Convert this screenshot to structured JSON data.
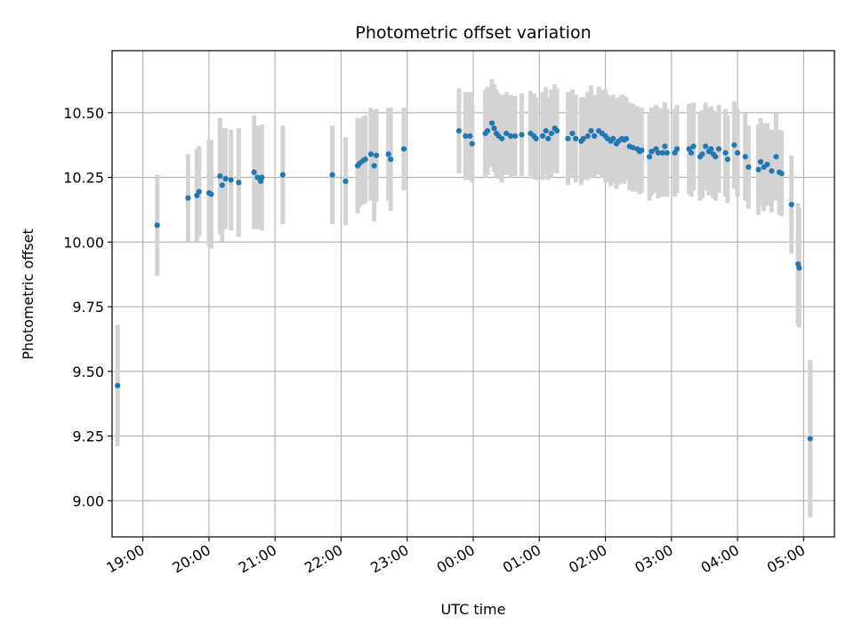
{
  "chart_data": {
    "type": "scatter",
    "title": "Photometric offset variation",
    "xlabel": "UTC time",
    "ylabel": "Photometric offset",
    "x_unit": "UTC time (HH:MM), points after 23:59 fall on the next day",
    "xlim": [
      "18:32",
      "24:00+05:28"
    ],
    "ylim": [
      8.86,
      10.74
    ],
    "grid": true,
    "x_tick_labels": [
      "19:00",
      "20:00",
      "21:00",
      "22:00",
      "23:00",
      "00:00",
      "01:00",
      "02:00",
      "03:00",
      "04:00",
      "05:00"
    ],
    "y_tick_labels": [
      "9.00",
      "9.25",
      "9.50",
      "9.75",
      "10.00",
      "10.25",
      "10.50"
    ],
    "y_ticks": [
      9.0,
      9.25,
      9.5,
      9.75,
      10.0,
      10.25,
      10.5
    ],
    "colors": {
      "points": "#1f77b4",
      "error_bars": "#d3d3d3",
      "grid": "#b0b0b0"
    },
    "series": [
      {
        "points": [
          [
            "18:37",
            9.445,
            0.235
          ],
          [
            "19:13",
            10.065,
            0.195
          ],
          [
            "19:41",
            10.17,
            0.17
          ],
          [
            "19:49",
            10.18,
            0.18
          ],
          [
            "19:51",
            10.195,
            0.175
          ],
          [
            "20:00",
            10.19,
            0.205
          ],
          [
            "20:02",
            10.185,
            0.21
          ],
          [
            "20:10",
            10.255,
            0.225
          ],
          [
            "20:12",
            10.22,
            0.22
          ],
          [
            "20:15",
            10.245,
            0.195
          ],
          [
            "20:20",
            10.24,
            0.195
          ],
          [
            "20:27",
            10.23,
            0.21
          ],
          [
            "20:41",
            10.27,
            0.22
          ],
          [
            "20:44",
            10.25,
            0.2
          ],
          [
            "20:47",
            10.235,
            0.185
          ],
          [
            "20:48",
            10.25,
            0.205
          ],
          [
            "21:07",
            10.26,
            0.19
          ],
          [
            "21:52",
            10.26,
            0.19
          ],
          [
            "22:04",
            10.235,
            0.17
          ],
          [
            "22:15",
            10.295,
            0.185
          ],
          [
            "22:17",
            10.305,
            0.17
          ],
          [
            "22:20",
            10.315,
            0.17
          ],
          [
            "22:22",
            10.32,
            0.17
          ],
          [
            "22:27",
            10.34,
            0.18
          ],
          [
            "22:30",
            10.295,
            0.215
          ],
          [
            "22:32",
            10.335,
            0.18
          ],
          [
            "22:43",
            10.34,
            0.18
          ],
          [
            "22:45",
            10.32,
            0.2
          ],
          [
            "22:57",
            10.36,
            0.16
          ],
          [
            "23:47",
            10.43,
            0.165
          ],
          [
            "23:53",
            10.41,
            0.17
          ],
          [
            "23:57",
            10.41,
            0.17
          ],
          [
            "23:59",
            10.38,
            0.15
          ],
          [
            "00:11",
            10.42,
            0.17
          ],
          [
            "00:13",
            10.43,
            0.17
          ],
          [
            "00:17",
            10.46,
            0.17
          ],
          [
            "00:19",
            10.44,
            0.17
          ],
          [
            "00:21",
            10.42,
            0.17
          ],
          [
            "00:23",
            10.41,
            0.165
          ],
          [
            "00:26",
            10.4,
            0.17
          ],
          [
            "00:30",
            10.42,
            0.16
          ],
          [
            "00:34",
            10.41,
            0.16
          ],
          [
            "00:38",
            10.41,
            0.155
          ],
          [
            "00:44",
            10.415,
            0.16
          ],
          [
            "00:52",
            10.42,
            0.165
          ],
          [
            "00:55",
            10.41,
            0.165
          ],
          [
            "00:57",
            10.4,
            0.16
          ],
          [
            "01:03",
            10.41,
            0.17
          ],
          [
            "01:06",
            10.43,
            0.17
          ],
          [
            "01:08",
            10.4,
            0.16
          ],
          [
            "01:11",
            10.42,
            0.17
          ],
          [
            "01:14",
            10.44,
            0.17
          ],
          [
            "01:16",
            10.43,
            0.165
          ],
          [
            "01:26",
            10.4,
            0.18
          ],
          [
            "01:30",
            10.42,
            0.17
          ],
          [
            "01:33",
            10.4,
            0.17
          ],
          [
            "01:38",
            10.39,
            0.17
          ],
          [
            "01:40",
            10.4,
            0.16
          ],
          [
            "01:44",
            10.41,
            0.17
          ],
          [
            "01:47",
            10.43,
            0.175
          ],
          [
            "01:50",
            10.41,
            0.16
          ],
          [
            "01:54",
            10.43,
            0.17
          ],
          [
            "01:57",
            10.42,
            0.17
          ],
          [
            "02:00",
            10.41,
            0.18
          ],
          [
            "02:02",
            10.4,
            0.17
          ],
          [
            "02:05",
            10.39,
            0.175
          ],
          [
            "02:07",
            10.4,
            0.17
          ],
          [
            "02:10",
            10.38,
            0.175
          ],
          [
            "02:12",
            10.39,
            0.17
          ],
          [
            "02:15",
            10.4,
            0.17
          ],
          [
            "02:17",
            10.395,
            0.17
          ],
          [
            "02:19",
            10.4,
            0.16
          ],
          [
            "02:22",
            10.37,
            0.17
          ],
          [
            "02:25",
            10.365,
            0.17
          ],
          [
            "02:29",
            10.36,
            0.165
          ],
          [
            "02:31",
            10.35,
            0.165
          ],
          [
            "02:33",
            10.355,
            0.165
          ],
          [
            "02:40",
            10.33,
            0.17
          ],
          [
            "02:42",
            10.35,
            0.17
          ],
          [
            "02:46",
            10.36,
            0.17
          ],
          [
            "02:48",
            10.345,
            0.175
          ],
          [
            "02:52",
            10.345,
            0.17
          ],
          [
            "02:54",
            10.37,
            0.17
          ],
          [
            "02:56",
            10.345,
            0.17
          ],
          [
            "03:03",
            10.345,
            0.17
          ],
          [
            "03:05",
            10.36,
            0.17
          ],
          [
            "03:16",
            10.36,
            0.175
          ],
          [
            "03:18",
            10.345,
            0.17
          ],
          [
            "03:20",
            10.37,
            0.17
          ],
          [
            "03:26",
            10.33,
            0.17
          ],
          [
            "03:28",
            10.34,
            0.17
          ],
          [
            "03:31",
            10.37,
            0.17
          ],
          [
            "03:34",
            10.35,
            0.17
          ],
          [
            "03:36",
            10.36,
            0.165
          ],
          [
            "03:38",
            10.34,
            0.17
          ],
          [
            "03:40",
            10.33,
            0.17
          ],
          [
            "03:43",
            10.36,
            0.17
          ],
          [
            "03:49",
            10.345,
            0.17
          ],
          [
            "03:51",
            10.32,
            0.17
          ],
          [
            "03:57",
            10.375,
            0.17
          ],
          [
            "04:00",
            10.345,
            0.17
          ],
          [
            "04:07",
            10.33,
            0.17
          ],
          [
            "04:10",
            10.29,
            0.16
          ],
          [
            "04:19",
            10.28,
            0.175
          ],
          [
            "04:21",
            10.31,
            0.17
          ],
          [
            "04:24",
            10.29,
            0.17
          ],
          [
            "04:27",
            10.3,
            0.16
          ],
          [
            "04:31",
            10.275,
            0.16
          ],
          [
            "04:35",
            10.33,
            0.17
          ],
          [
            "04:38",
            10.27,
            0.165
          ],
          [
            "04:40",
            10.265,
            0.165
          ],
          [
            "04:49",
            10.145,
            0.19
          ],
          [
            "04:55",
            9.915,
            0.235
          ],
          [
            "04:56",
            9.9,
            0.23
          ],
          [
            "05:06",
            9.24,
            0.305
          ]
        ]
      }
    ]
  }
}
